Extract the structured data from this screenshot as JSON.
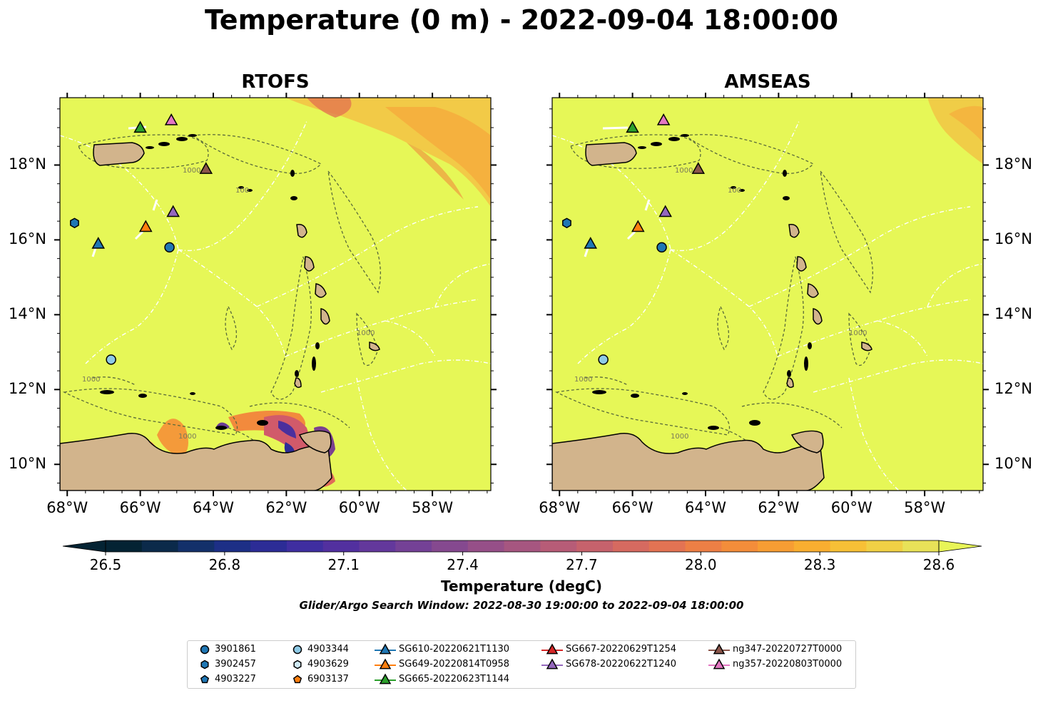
{
  "title": "Temperature (0 m) - 2022-09-04 18:00:00",
  "panels": [
    {
      "title": "RTOFS"
    },
    {
      "title": "AMSEAS"
    }
  ],
  "axes": {
    "lat_labels": [
      "18°N",
      "16°N",
      "14°N",
      "12°N",
      "10°N"
    ],
    "lat_values": [
      18,
      16,
      14,
      12,
      10
    ],
    "lon_labels": [
      "68°W",
      "66°W",
      "64°W",
      "62°W",
      "60°W",
      "58°W"
    ],
    "lon_values": [
      -68,
      -66,
      -64,
      -62,
      -60,
      -58
    ],
    "lon_range": [
      -68.2,
      -56.4
    ],
    "lat_range": [
      9.3,
      19.8
    ]
  },
  "contour_labels": [
    "100",
    "1000"
  ],
  "colorbar": {
    "label": "Temperature (degC)",
    "ticks": [
      "26.5",
      "26.8",
      "27.1",
      "27.4",
      "27.7",
      "28.0",
      "28.3",
      "28.6"
    ],
    "min": 26.5,
    "max": 28.6,
    "extend": "both",
    "colors": [
      "#042333",
      "#0b2a4a",
      "#13306a",
      "#1d2f86",
      "#2c2c96",
      "#3f2ea0",
      "#52309f",
      "#63389c",
      "#744196",
      "#85498f",
      "#964f88",
      "#a65680",
      "#b75c77",
      "#c6626c",
      "#d66a60",
      "#e37353",
      "#ed7f45",
      "#f38d3a",
      "#f79d33",
      "#f9ae30",
      "#f7c036",
      "#f0d045",
      "#e8e258"
    ],
    "over_color": "#e8f557",
    "under_color": "#042333"
  },
  "search_window": "Glider/Argo Search Window: 2022-08-30 19:00:00 to 2022-09-04 18:00:00",
  "legend": {
    "items": [
      {
        "label": "3901861",
        "marker": "circle",
        "color": "#1f77b4"
      },
      {
        "label": "3902457",
        "marker": "hexagon",
        "color": "#1f77b4"
      },
      {
        "label": "4903227",
        "marker": "pentagon",
        "color": "#1f77b4"
      },
      {
        "label": "4903344",
        "marker": "circle",
        "color": "#8ecae6"
      },
      {
        "label": "4903629",
        "marker": "hexagon",
        "color": "#cfeaf6"
      },
      {
        "label": "6903137",
        "marker": "pentagon",
        "color": "#ff7f0e"
      },
      {
        "label": "SG610-20220621T1130",
        "marker": "triangle-line",
        "color": "#1f77b4"
      },
      {
        "label": "SG649-20220814T0958",
        "marker": "triangle-line",
        "color": "#ff7f0e"
      },
      {
        "label": "SG665-20220623T1144",
        "marker": "triangle-line",
        "color": "#2ca02c"
      },
      {
        "label": "SG667-20220629T1254",
        "marker": "triangle-line",
        "color": "#d62728"
      },
      {
        "label": "SG678-20220622T1240",
        "marker": "triangle-line",
        "color": "#9467bd"
      },
      {
        "label": "ng347-20220727T0000",
        "marker": "triangle-line",
        "color": "#8c564b"
      },
      {
        "label": "ng357-20220803T0000",
        "marker": "triangle-line",
        "color": "#e377c2"
      }
    ]
  },
  "observations": [
    {
      "id": "3901861",
      "marker": "circle",
      "color": "#1f77b4",
      "lon": -65.2,
      "lat": 15.8
    },
    {
      "id": "3902457",
      "marker": "hexagon",
      "color": "#1f77b4",
      "lon": -67.8,
      "lat": 16.45
    },
    {
      "id": "4903344",
      "marker": "circle",
      "color": "#8ecae6",
      "lon": -66.8,
      "lat": 12.8
    },
    {
      "id": "SG610-20220621T1130",
      "marker": "triangle",
      "color": "#1f77b4",
      "lon": -67.15,
      "lat": 15.9
    },
    {
      "id": "SG649-20220814T0958",
      "marker": "triangle",
      "color": "#ff7f0e",
      "lon": -65.85,
      "lat": 16.35
    },
    {
      "id": "SG665-20220623T1144",
      "marker": "triangle",
      "color": "#2ca02c",
      "lon": -66.0,
      "lat": 19.0
    },
    {
      "id": "SG678-20220622T1240",
      "marker": "triangle",
      "color": "#9467bd",
      "lon": -65.1,
      "lat": 16.75
    },
    {
      "id": "ng347-20220727T0000",
      "marker": "triangle",
      "color": "#8c564b",
      "lon": -64.2,
      "lat": 17.9
    },
    {
      "id": "ng357-20220803T0000",
      "marker": "triangle",
      "color": "#e377c2",
      "lon": -65.15,
      "lat": 19.2
    }
  ],
  "colors": {
    "ocean_base": "#e6f757",
    "land": "#d2b48c",
    "bathymetry_contour": "#5a6b3a",
    "eez_lines": "#ffffff"
  }
}
